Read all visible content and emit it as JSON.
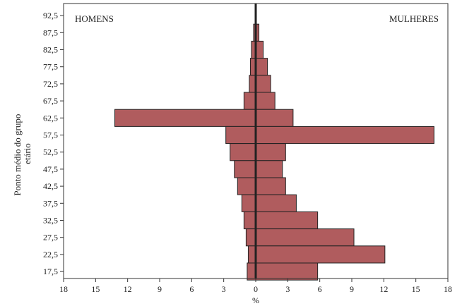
{
  "chart_data": {
    "type": "bar",
    "orientation": "horizontal",
    "subtype": "population-pyramid",
    "title": "",
    "xlabel": "%",
    "ylabel": "Ponto médio do grupo etário",
    "left_label": "HOMENS",
    "right_label": "MULHERES",
    "xlim": [
      -18,
      18
    ],
    "x_ticks": [
      -18,
      -15,
      -12,
      -9,
      -6,
      -3,
      0,
      3,
      6,
      9,
      12,
      15,
      18
    ],
    "x_tick_labels": [
      "18",
      "15",
      "12",
      "9",
      "6",
      "3",
      "0",
      "3",
      "6",
      "9",
      "12",
      "15",
      "18"
    ],
    "categories": [
      "92,5",
      "87,5",
      "82,5",
      "77,5",
      "72,5",
      "67,5",
      "62,5",
      "57,5",
      "52,5",
      "47,5",
      "42,5",
      "37,5",
      "32,5",
      "27,5",
      "22,5",
      "17,5"
    ],
    "series": [
      {
        "name": "HOMENS",
        "values": [
          0,
          0.2,
          0.4,
          0.5,
          0.6,
          1.1,
          13.2,
          2.8,
          2.4,
          2.0,
          1.7,
          1.3,
          1.1,
          0.9,
          0.7,
          0.8
        ]
      },
      {
        "name": "MULHERES",
        "values": [
          0,
          0.3,
          0.7,
          1.1,
          1.4,
          1.8,
          3.5,
          16.7,
          2.8,
          2.5,
          2.8,
          3.8,
          5.8,
          9.2,
          12.1,
          5.8
        ]
      }
    ],
    "bar_color": "#b05c5e",
    "bar_edge_color": "#222222",
    "grid": false
  }
}
